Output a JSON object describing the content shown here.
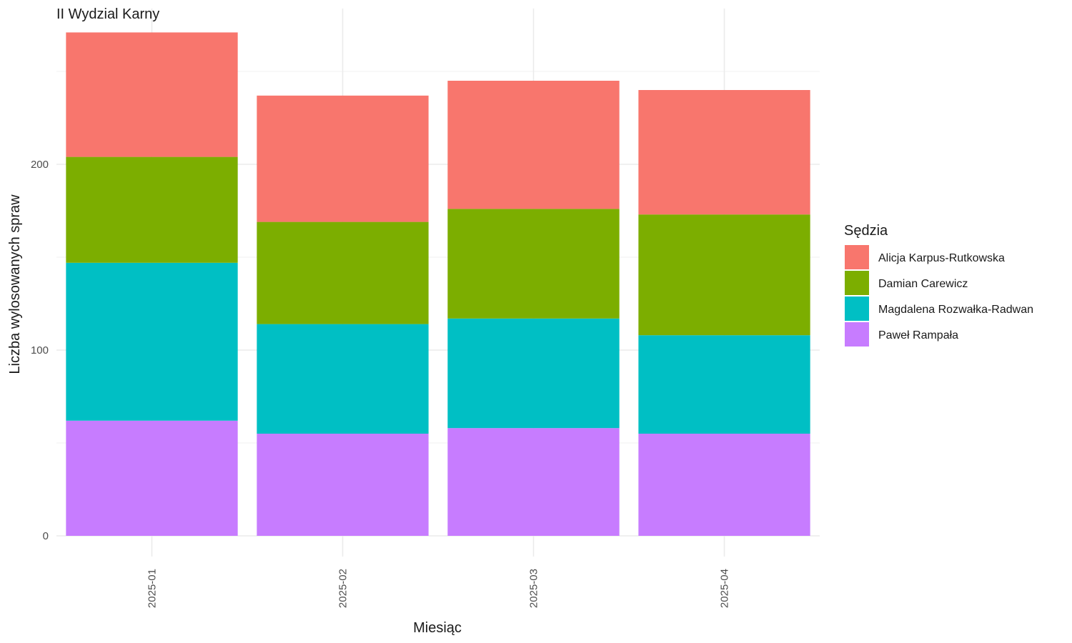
{
  "chart_data": {
    "type": "bar",
    "stacked": true,
    "title": "II Wydzial Karny",
    "xlabel": "Miesiąc",
    "ylabel": "Liczba wylosowanych spraw",
    "ylim": [
      0,
      285
    ],
    "yticks": [
      0,
      100,
      200
    ],
    "grid": true,
    "legend_title": "Sędzia",
    "legend_position": "right",
    "categories": [
      "2025-01",
      "2025-02",
      "2025-03",
      "2025-04"
    ],
    "series": [
      {
        "name": "Paweł Rampała",
        "color": "#C77CFF",
        "values": [
          62,
          55,
          58,
          55
        ]
      },
      {
        "name": "Magdalena Rozwałka-Radwan",
        "color": "#00BFC4",
        "values": [
          85,
          59,
          59,
          53
        ]
      },
      {
        "name": "Damian Carewicz",
        "color": "#7CAE00",
        "values": [
          57,
          55,
          59,
          65
        ]
      },
      {
        "name": "Alicja Karpus-Rutkowska",
        "color": "#F8766D",
        "values": [
          67,
          68,
          69,
          67
        ]
      }
    ],
    "legend_order": [
      "Alicja Karpus-Rutkowska",
      "Damian Carewicz",
      "Magdalena Rozwałka-Radwan",
      "Paweł Rampała"
    ]
  }
}
